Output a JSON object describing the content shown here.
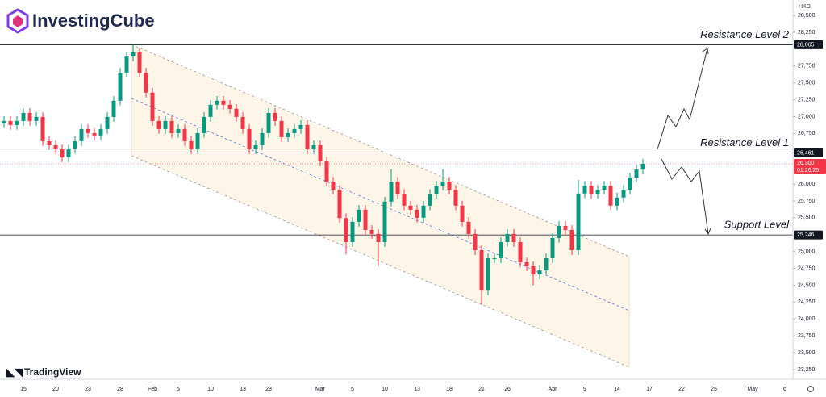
{
  "brand": "InvestingCube",
  "chart_data": {
    "type": "candlestick",
    "watermark": "TradingView",
    "currency": "HKD",
    "up_color": "#089981",
    "down_color": "#f23645",
    "ylim": [
      23106,
      28728
    ],
    "yticks": [
      {
        "value": 28500,
        "label": "28,500"
      },
      {
        "value": 28250,
        "label": "28,250"
      },
      {
        "value": 27750,
        "label": "27,750"
      },
      {
        "value": 27500,
        "label": "27,500"
      },
      {
        "value": 27250,
        "label": "27,250"
      },
      {
        "value": 27000,
        "label": "27,000"
      },
      {
        "value": 26750,
        "label": "26,750"
      },
      {
        "value": 26000,
        "label": "26,000"
      },
      {
        "value": 25750,
        "label": "25,750"
      },
      {
        "value": 25500,
        "label": "25,500"
      },
      {
        "value": 25000,
        "label": "25,000"
      },
      {
        "value": 24750,
        "label": "24,750"
      },
      {
        "value": 24500,
        "label": "24,500"
      },
      {
        "value": 24250,
        "label": "24,250"
      },
      {
        "value": 24000,
        "label": "24,000"
      },
      {
        "value": 23750,
        "label": "23,750"
      },
      {
        "value": 23500,
        "label": "23,500"
      },
      {
        "value": 23250,
        "label": "23,250"
      }
    ],
    "categories": [
      null,
      null,
      null,
      "15",
      null,
      null,
      null,
      null,
      "20",
      null,
      null,
      null,
      null,
      "23",
      null,
      null,
      null,
      null,
      "28",
      null,
      null,
      null,
      null,
      "Feb",
      null,
      null,
      null,
      "5",
      null,
      null,
      null,
      null,
      "10",
      null,
      null,
      null,
      null,
      "13",
      null,
      null,
      null,
      "23",
      null,
      null,
      null,
      null,
      null,
      null,
      null,
      "Mar",
      null,
      null,
      null,
      null,
      "5",
      null,
      null,
      null,
      null,
      "10",
      null,
      null,
      null,
      null,
      "13",
      null,
      null,
      null,
      null,
      "18",
      null,
      null,
      null,
      null,
      "21",
      null,
      null,
      null,
      "26",
      null,
      null,
      null,
      null,
      null,
      null,
      "Apr",
      null,
      null,
      null,
      null,
      "9",
      null,
      null,
      null,
      null,
      "14",
      null,
      null,
      null,
      null,
      "17",
      null,
      null,
      null,
      null,
      "22",
      null,
      null,
      null,
      null,
      "25",
      null,
      null,
      null,
      null,
      null,
      "May",
      null,
      null,
      null,
      null,
      "6"
    ],
    "open": [
      26900,
      26935,
      26875,
      26935,
      27055,
      26935,
      26995,
      26635,
      26575,
      26515,
      26395,
      26515,
      26635,
      26815,
      26755,
      26720,
      26815,
      26995,
      27235,
      27650,
      27890,
      27950,
      27650,
      27355,
      26935,
      26815,
      26935,
      26755,
      26815,
      26635,
      26515,
      26755,
      26995,
      27175,
      27235,
      27175,
      27115,
      26995,
      26815,
      26515,
      26575,
      26755,
      27055,
      26935,
      26695,
      26755,
      26815,
      26875,
      26515,
      26575,
      26335,
      26035,
      25915,
      25495,
      25140,
      25440,
      25620,
      25320,
      25260,
      25140,
      25740,
      26035,
      25855,
      25680,
      25620,
      25500,
      25680,
      25855,
      25975,
      26035,
      25915,
      25680,
      25440,
      25260,
      25020,
      24420,
      24900,
      24900,
      25140,
      25260,
      25140,
      24840,
      24780,
      24660,
      24720,
      24900,
      25200,
      25380,
      25320,
      25020,
      25860,
      25975,
      25855,
      25915,
      25975,
      25680,
      25800,
      25915,
      26095,
      26215,
      null,
      null,
      null,
      null,
      null,
      null,
      null,
      null,
      null,
      null,
      null,
      null,
      null,
      null,
      null,
      null,
      null,
      null,
      null,
      null,
      null,
      null
    ],
    "high": [
      27005,
      27005,
      27005,
      27125,
      27125,
      27065,
      27065,
      26705,
      26645,
      26585,
      26585,
      26705,
      26885,
      26885,
      26825,
      26885,
      27065,
      27305,
      27720,
      27960,
      28070,
      28020,
      27720,
      27425,
      27005,
      27005,
      27005,
      26885,
      26885,
      26705,
      26825,
      27065,
      27245,
      27305,
      27305,
      27245,
      27185,
      27065,
      26885,
      26645,
      26825,
      27125,
      27125,
      27005,
      26825,
      26885,
      26945,
      26945,
      26645,
      26645,
      26405,
      26105,
      25985,
      25565,
      25510,
      25690,
      25690,
      25390,
      25330,
      25810,
      26220,
      26105,
      25925,
      25750,
      25690,
      25750,
      25925,
      26045,
      26220,
      26105,
      25985,
      25750,
      25510,
      25330,
      25090,
      24970,
      24970,
      25210,
      25330,
      25330,
      25210,
      24910,
      24850,
      24790,
      24970,
      25270,
      25450,
      25450,
      25390,
      26060,
      26045,
      26045,
      25985,
      26045,
      26045,
      25870,
      25985,
      26165,
      26285,
      26370,
      null,
      null,
      null,
      null,
      null,
      null,
      null,
      null,
      null,
      null,
      null,
      null,
      null,
      null,
      null,
      null,
      null,
      null,
      null,
      null,
      null,
      null
    ],
    "low": [
      26830,
      26805,
      26805,
      26865,
      26865,
      26865,
      26565,
      26505,
      26445,
      26325,
      26325,
      26445,
      26565,
      26685,
      26650,
      26650,
      26745,
      26925,
      27165,
      27580,
      27820,
      27580,
      27285,
      26865,
      26745,
      26745,
      26685,
      26685,
      26565,
      26445,
      26445,
      26685,
      26925,
      27105,
      27105,
      27045,
      26925,
      26745,
      26445,
      26445,
      26505,
      26685,
      26865,
      26625,
      26625,
      26685,
      26745,
      26445,
      26445,
      26265,
      25965,
      25845,
      25425,
      24960,
      25070,
      25370,
      25250,
      25190,
      24780,
      25070,
      25670,
      25785,
      25610,
      25550,
      25430,
      25430,
      25610,
      25785,
      25905,
      25845,
      25610,
      25370,
      25190,
      24950,
      24210,
      24350,
      24830,
      24830,
      25070,
      25070,
      24770,
      24710,
      24500,
      24590,
      24650,
      24830,
      25130,
      25250,
      24950,
      24950,
      25790,
      25785,
      25785,
      25845,
      25610,
      25610,
      25730,
      25845,
      26025,
      26145,
      null,
      null,
      null,
      null,
      null,
      null,
      null,
      null,
      null,
      null,
      null,
      null,
      null,
      null,
      null,
      null,
      null,
      null,
      null,
      null,
      null,
      null
    ],
    "close": [
      26935,
      26875,
      26935,
      27055,
      26935,
      26995,
      26635,
      26575,
      26515,
      26395,
      26515,
      26635,
      26815,
      26755,
      26720,
      26815,
      26995,
      27235,
      27650,
      27890,
      27950,
      27650,
      27355,
      26935,
      26815,
      26935,
      26755,
      26815,
      26635,
      26515,
      26755,
      26995,
      27175,
      27235,
      27175,
      27115,
      26995,
      26815,
      26515,
      26575,
      26755,
      27055,
      26935,
      26695,
      26755,
      26815,
      26875,
      26515,
      26575,
      26335,
      26035,
      25915,
      25495,
      25140,
      25440,
      25620,
      25320,
      25260,
      25140,
      25740,
      26035,
      25855,
      25680,
      25620,
      25500,
      25680,
      25855,
      25975,
      26035,
      25915,
      25680,
      25440,
      25260,
      25020,
      24420,
      24900,
      24900,
      25140,
      25260,
      25140,
      24840,
      24780,
      24660,
      24720,
      24900,
      25200,
      25380,
      25320,
      25020,
      25860,
      25975,
      25855,
      25915,
      25975,
      25680,
      25800,
      25915,
      26095,
      26215,
      26300,
      null,
      null,
      null,
      null,
      null,
      null,
      null,
      null,
      null,
      null,
      null,
      null,
      null,
      null,
      null,
      null,
      null,
      null,
      null,
      null,
      null,
      null
    ],
    "levels": {
      "labels": [
        "Resistance Level 2",
        "Resistance Level 1",
        "Support Level"
      ],
      "values": [
        28065,
        26461,
        25246
      ],
      "value_labels": [
        "28,065",
        "26,461",
        "25,246"
      ]
    },
    "last_price": {
      "value": 26300,
      "label": "26,300"
    },
    "countdown": "01:26:25"
  }
}
